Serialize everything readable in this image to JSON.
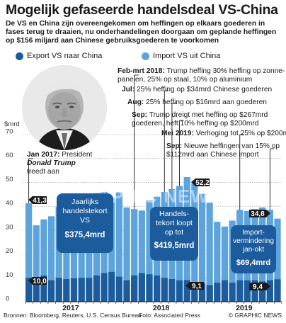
{
  "title": "Mogelijk gefaseerde handelsdeal VS-China",
  "subtitle": "De VS en China zijn overeengekomen om heffingen op elkaars goederen in fases terug te draaien, nu onderhandelingen doorgaan om geplande heffingen op $156 miljard aan Chinese gebruiksgoederen te voorkomen",
  "legend": {
    "export": "Export VS naar China",
    "import": "Import VS uit China"
  },
  "colors": {
    "import": "#5da4dc",
    "export": "#1c5c9c",
    "deficit_box": "#1c5c9c",
    "gridline": "#9a9a9a"
  },
  "annotations": {
    "jan2017_date": "Jan 2017:",
    "jan2017_text1": "President",
    "jan2017_name": "Donald Trump",
    "jan2017_text2": "treedt aan",
    "feb_date": "Feb-mrt 2018:",
    "feb_text": "Trump heffing 30% heffing op zonne-",
    "feb_text2": "panelen, 25% op staal, 10% op aluminium",
    "jul_date": "Jul:",
    "jul_text": "25% heffing op $34mrd Chinese goederen",
    "aug_date": "Aug:",
    "aug_text": "25% heffing op $16mrd aan goederen",
    "sep_date": "Sep:",
    "sep_text": "Trump dreigt met heffing op $267mrd",
    "sep_text2": "goederen, heft 10% heffing op $200mrd",
    "mei_date": "Mei 2019:",
    "mei_text": "Verhoging tot 25% op $200mrd",
    "sep19_date": "Sep:",
    "sep19_text": "Nieuwe heffingen van 15% op",
    "sep19_text2": "$112mrd aan Chinese import"
  },
  "boxes": {
    "deficit_2017_l1": "Jaarlijks",
    "deficit_2017_l2": "handelstekort",
    "deficit_2017_l3": "VS",
    "deficit_2017_value": "$375,4mrd",
    "deficit_2018_l1": "Handels-",
    "deficit_2018_l2": "tekort loopt",
    "deficit_2018_l3": "op tot",
    "deficit_2018_value": "$419,5mrd",
    "deficit_2019_l1": "Import-",
    "deficit_2019_l2": "vermindering",
    "deficit_2019_l3": "jan-okt",
    "deficit_2019_value": "$69,4mrd"
  },
  "callouts": {
    "import_start": "41,3",
    "import_peak": "52,2",
    "import_end": "34,8",
    "export_start": "10,0",
    "export_mid": "9,1",
    "export_end": "9,4"
  },
  "footer": {
    "source": "Bronnen: Bloomberg, Reuters, U.S. Census Bureau",
    "photo": "Foto: Associated Press",
    "brand": "© GRAPHIC NEWS"
  },
  "watermark": "GRAPHIC NEWS",
  "chart_data": {
    "type": "bar",
    "ylabel": "$mrd",
    "ylim": [
      0,
      70
    ],
    "yticks": [
      0,
      10,
      20,
      30,
      40,
      50,
      60,
      70
    ],
    "year_labels": [
      "2017",
      "2018",
      "2019"
    ],
    "months": [
      "Jan 2017",
      "Feb 2017",
      "Mrt 2017",
      "Apr 2017",
      "Mei 2017",
      "Jun 2017",
      "Jul 2017",
      "Aug 2017",
      "Sep 2017",
      "Okt 2017",
      "Nov 2017",
      "Dec 2017",
      "Jan 2018",
      "Feb 2018",
      "Mrt 2018",
      "Apr 2018",
      "Mei 2018",
      "Jun 2018",
      "Jul 2018",
      "Aug 2018",
      "Sep 2018",
      "Okt 2018",
      "Nov 2018",
      "Dec 2018",
      "Jan 2019",
      "Feb 2019",
      "Mrt 2019",
      "Apr 2019",
      "Mei 2019",
      "Jun 2019",
      "Jul 2019",
      "Aug 2019",
      "Sep 2019",
      "Okt 2019"
    ],
    "series": [
      {
        "name": "Import VS uit China",
        "values": [
          41.3,
          32.0,
          34.5,
          35.8,
          39.8,
          41.2,
          42.5,
          43.8,
          45.0,
          45.5,
          46.0,
          43.5,
          45.8,
          39.5,
          38.8,
          38.2,
          42.5,
          44.0,
          46.0,
          47.2,
          48.5,
          52.2,
          49.5,
          45.2,
          41.5,
          33.5,
          31.5,
          34.0,
          38.5,
          38.0,
          38.8,
          39.5,
          38.5,
          34.8
        ]
      },
      {
        "name": "Export VS naar China",
        "values": [
          10.0,
          9.0,
          11.0,
          9.0,
          10.0,
          9.5,
          9.8,
          10.0,
          10.0,
          11.0,
          12.0,
          12.5,
          10.5,
          9.0,
          11.0,
          12.0,
          11.5,
          11.0,
          10.0,
          9.5,
          9.0,
          9.1,
          7.5,
          7.8,
          7.0,
          8.0,
          9.0,
          8.0,
          9.0,
          9.0,
          9.0,
          8.5,
          9.0,
          9.4
        ]
      }
    ],
    "events": [
      "Jan 2017",
      "Mrt 2018",
      "Jul 2018",
      "Aug 2018",
      "Sep 2018",
      "Mei 2019",
      "Sep 2019"
    ]
  }
}
